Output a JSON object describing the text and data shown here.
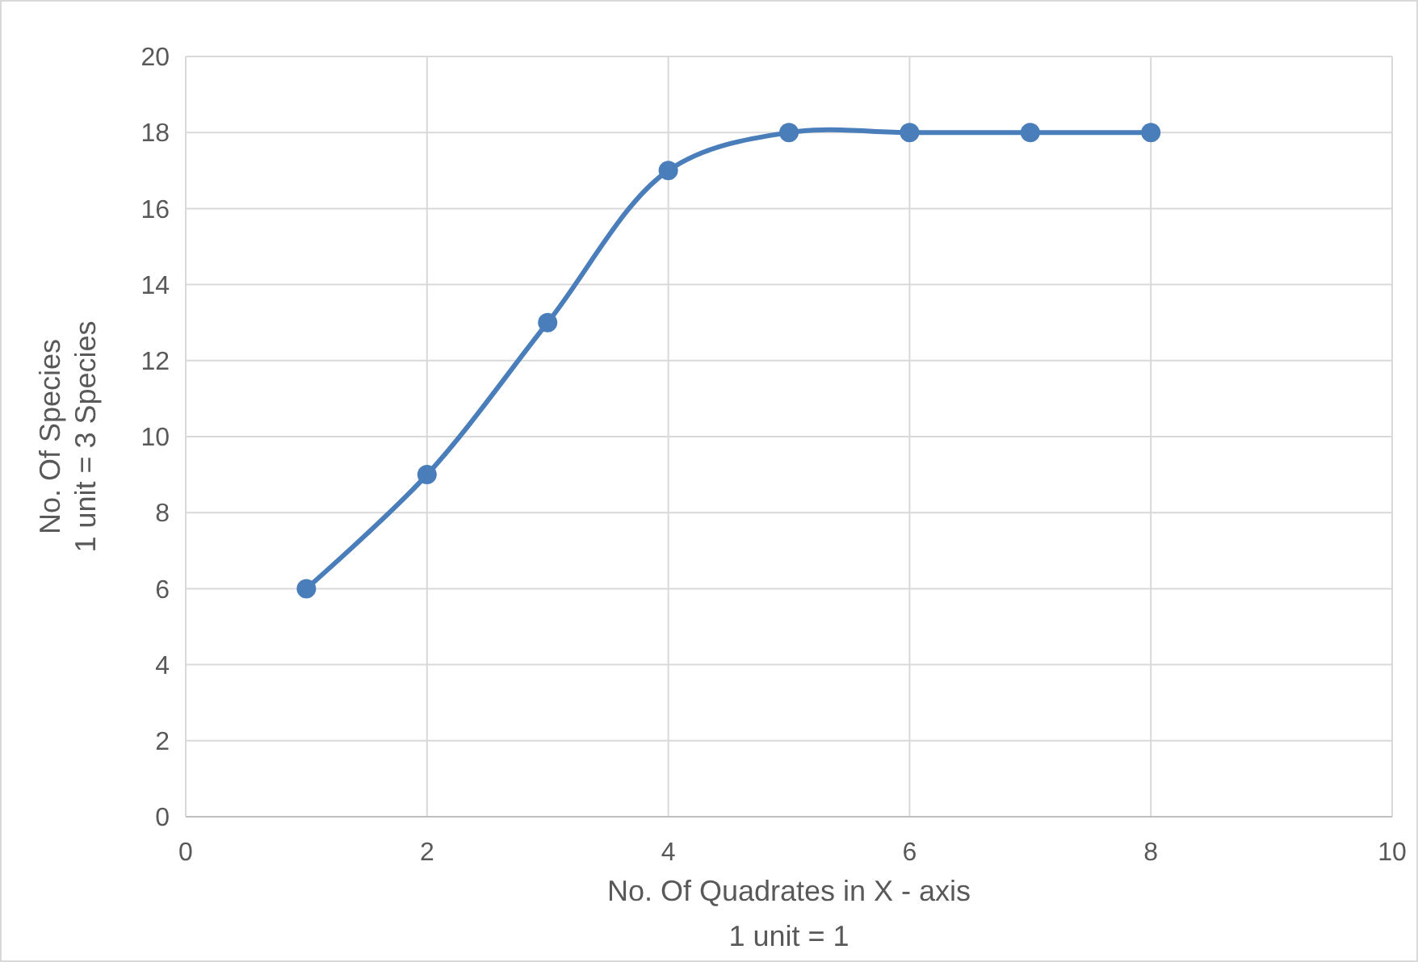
{
  "chart_data": {
    "type": "line",
    "xlabel": "No. Of Quadrates in X - axis\n1 unit = 1",
    "ylabel": "No. Of Species\n1 unit = 3 Species",
    "x": [
      1,
      2,
      3,
      4,
      5,
      6,
      7,
      8
    ],
    "series": [
      {
        "color": "#4a7ebb",
        "values": [
          6,
          9,
          13,
          17,
          18,
          18,
          18,
          18
        ]
      }
    ],
    "xlim": [
      0,
      10
    ],
    "xticks": [
      0,
      2,
      4,
      6,
      8,
      10
    ],
    "ylim": [
      0,
      20
    ],
    "yticks": [
      0,
      2,
      4,
      6,
      8,
      10,
      12,
      14,
      16,
      18,
      20
    ],
    "grid": true,
    "marker": "circle",
    "line_style": "solid"
  }
}
